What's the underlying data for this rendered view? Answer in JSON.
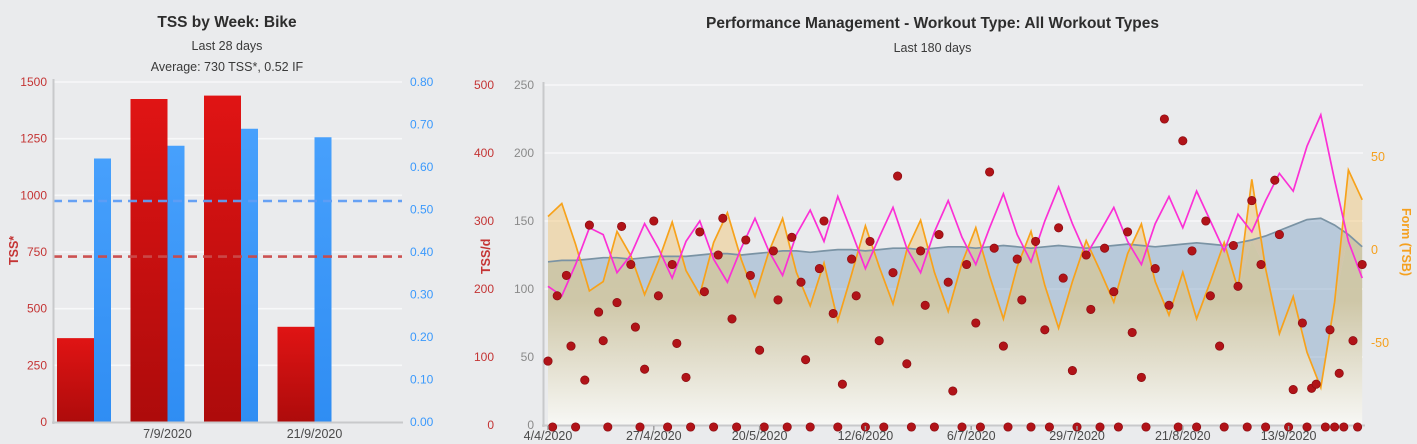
{
  "page": {
    "background": "#eaebed"
  },
  "chart_data": [
    {
      "id": "tss-by-week",
      "type": "bar",
      "title": "TSS by Week: Bike",
      "subtitle": "Last 28 days",
      "note": "Average: 730 TSS*, 0.52 IF",
      "categories": [
        "",
        "7/9/2020",
        "",
        "21/9/2020"
      ],
      "series": [
        {
          "name": "weekly-tss-red-bars",
          "axis": "left",
          "color_top": "#e01414",
          "color_bottom": "#ad0b0b",
          "values": [
            370,
            1425,
            1440,
            420
          ]
        },
        {
          "name": "weekly-if-blue-bars",
          "axis": "right",
          "color_top": "#47a0fc",
          "color_bottom": "#2f8df3",
          "values": [
            0.62,
            0.65,
            0.69,
            0.67
          ]
        }
      ],
      "average_lines": [
        {
          "name": "avg-tss-dashed",
          "axis": "left",
          "value": 730,
          "color": "#cb4a4a"
        },
        {
          "name": "avg-if-dashed",
          "axis": "right",
          "value": 0.52,
          "color": "#5f9ef5"
        }
      ],
      "y_left": {
        "title": "TSS*",
        "min": 0,
        "max": 1500,
        "tick_step": 250,
        "color": "#c43434"
      },
      "y_right": {
        "min": 0,
        "max": 0.8,
        "tick_step": 0.1,
        "decimals": 2,
        "color": "#3b99fc"
      },
      "x_label_color": "#4a4a4a",
      "grid": true
    },
    {
      "id": "performance-management",
      "type": "area",
      "title": "Performance Management - Workout Type: All Workout Types",
      "subtitle": "Last 180 days",
      "x_tick_labels": [
        "4/4/2020",
        "27/4/2020",
        "20/5/2020",
        "12/6/2020",
        "6/7/2020",
        "29/7/2020",
        "21/8/2020",
        "13/9/2020"
      ],
      "x_tick_days": [
        0,
        23,
        46,
        69,
        92,
        115,
        138,
        161
      ],
      "sample_step_days": 3,
      "y_axis_tssd": {
        "title": "TSS/d",
        "min": 0,
        "max": 500,
        "tick_step": 100,
        "color": "#c43434"
      },
      "y_axis_inner": {
        "min": 0,
        "max": 250,
        "tick_step": 50,
        "color": "#8a8a8a"
      },
      "y_axis_form": {
        "title": "Form (TSB)",
        "ticks": [
          50,
          0,
          -50
        ],
        "color": "#f5a01e"
      },
      "x_label_color": "#4a4a4a",
      "grid": true,
      "area_gradient": {
        "top": "#cdc5a4",
        "bottom": "#f8f8f5"
      },
      "series": [
        {
          "name": "blue-gray-area",
          "style": "area-line",
          "axis": "inner",
          "line_color": "#7a93a4",
          "fill_color": "rgba(125,160,195,0.45)",
          "values": [
            120,
            121,
            121,
            122,
            123,
            123,
            122,
            123,
            124,
            124,
            124,
            125,
            126,
            126,
            125,
            126,
            127,
            128,
            128,
            127,
            128,
            129,
            129,
            128,
            129,
            130,
            130,
            129,
            130,
            131,
            131,
            130,
            131,
            132,
            131,
            130,
            131,
            132,
            131,
            130,
            131,
            132,
            133,
            132,
            131,
            132,
            133,
            134,
            133,
            132,
            134,
            136,
            139,
            143,
            147,
            151,
            152,
            147,
            140,
            131
          ]
        },
        {
          "name": "orange-line",
          "style": "line",
          "axis": "form",
          "line_color": "#f7a21b",
          "fill_color": "rgba(242,196,110,0.45)",
          "values": [
            18,
            25,
            3,
            -22,
            -17,
            10,
            -3,
            -24,
            -6,
            15,
            -11,
            -24,
            4,
            20,
            -5,
            -25,
            -1,
            17,
            -12,
            -30,
            -7,
            -38,
            -13,
            13,
            -9,
            -29,
            0,
            16,
            -12,
            -33,
            -7,
            12,
            -14,
            -37,
            -9,
            10,
            -19,
            -42,
            -17,
            5,
            -11,
            -28,
            -2,
            14,
            -17,
            -35,
            -12,
            -37,
            -17,
            4,
            -21,
            38,
            -10,
            -45,
            -25,
            -55,
            -74,
            -28,
            43,
            27
          ]
        },
        {
          "name": "magenta-line",
          "style": "line",
          "axis": "inner",
          "line_color": "#fb30d5",
          "values": [
            102,
            95,
            118,
            145,
            140,
            112,
            125,
            148,
            130,
            108,
            135,
            150,
            122,
            105,
            130,
            152,
            128,
            110,
            140,
            158,
            135,
            168,
            142,
            115,
            138,
            160,
            130,
            112,
            142,
            165,
            138,
            118,
            145,
            170,
            140,
            120,
            150,
            175,
            148,
            125,
            142,
            160,
            135,
            118,
            148,
            168,
            145,
            172,
            150,
            128,
            155,
            142,
            165,
            185,
            172,
            205,
            228,
            180,
            135,
            108
          ]
        }
      ],
      "scatter": {
        "name": "red-dots",
        "axis": "inner",
        "color": "#b11318",
        "edge_color": "#8c0d12",
        "points": [
          [
            0,
            47
          ],
          [
            1,
            0
          ],
          [
            2,
            95
          ],
          [
            4,
            110
          ],
          [
            5,
            58
          ],
          [
            6,
            0
          ],
          [
            8,
            33
          ],
          [
            9,
            147
          ],
          [
            11,
            83
          ],
          [
            12,
            62
          ],
          [
            13,
            0
          ],
          [
            15,
            90
          ],
          [
            16,
            146
          ],
          [
            18,
            118
          ],
          [
            19,
            72
          ],
          [
            20,
            0
          ],
          [
            21,
            41
          ],
          [
            23,
            150
          ],
          [
            24,
            95
          ],
          [
            26,
            0
          ],
          [
            27,
            118
          ],
          [
            28,
            60
          ],
          [
            30,
            35
          ],
          [
            31,
            0
          ],
          [
            33,
            142
          ],
          [
            34,
            98
          ],
          [
            36,
            0
          ],
          [
            37,
            125
          ],
          [
            38,
            152
          ],
          [
            40,
            78
          ],
          [
            41,
            0
          ],
          [
            43,
            136
          ],
          [
            44,
            110
          ],
          [
            46,
            55
          ],
          [
            47,
            0
          ],
          [
            49,
            128
          ],
          [
            50,
            92
          ],
          [
            52,
            0
          ],
          [
            53,
            138
          ],
          [
            55,
            105
          ],
          [
            56,
            48
          ],
          [
            57,
            0
          ],
          [
            59,
            115
          ],
          [
            60,
            150
          ],
          [
            62,
            82
          ],
          [
            63,
            0
          ],
          [
            64,
            30
          ],
          [
            66,
            122
          ],
          [
            67,
            95
          ],
          [
            69,
            0
          ],
          [
            70,
            135
          ],
          [
            72,
            62
          ],
          [
            73,
            0
          ],
          [
            75,
            112
          ],
          [
            76,
            183
          ],
          [
            78,
            45
          ],
          [
            79,
            0
          ],
          [
            81,
            128
          ],
          [
            82,
            88
          ],
          [
            84,
            0
          ],
          [
            85,
            140
          ],
          [
            87,
            105
          ],
          [
            88,
            25
          ],
          [
            90,
            0
          ],
          [
            91,
            118
          ],
          [
            93,
            75
          ],
          [
            94,
            0
          ],
          [
            96,
            186
          ],
          [
            97,
            130
          ],
          [
            99,
            58
          ],
          [
            100,
            0
          ],
          [
            102,
            122
          ],
          [
            103,
            92
          ],
          [
            105,
            0
          ],
          [
            106,
            135
          ],
          [
            108,
            70
          ],
          [
            109,
            0
          ],
          [
            111,
            145
          ],
          [
            112,
            108
          ],
          [
            114,
            40
          ],
          [
            115,
            0
          ],
          [
            117,
            125
          ],
          [
            118,
            85
          ],
          [
            120,
            0
          ],
          [
            121,
            130
          ],
          [
            123,
            98
          ],
          [
            124,
            0
          ],
          [
            126,
            142
          ],
          [
            127,
            68
          ],
          [
            129,
            35
          ],
          [
            130,
            0
          ],
          [
            132,
            115
          ],
          [
            134,
            225
          ],
          [
            135,
            88
          ],
          [
            137,
            0
          ],
          [
            138,
            209
          ],
          [
            140,
            128
          ],
          [
            141,
            0
          ],
          [
            143,
            150
          ],
          [
            144,
            95
          ],
          [
            146,
            58
          ],
          [
            147,
            0
          ],
          [
            149,
            132
          ],
          [
            150,
            102
          ],
          [
            152,
            0
          ],
          [
            153,
            165
          ],
          [
            155,
            118
          ],
          [
            156,
            0
          ],
          [
            158,
            180
          ],
          [
            159,
            140
          ],
          [
            161,
            0
          ],
          [
            162,
            26
          ],
          [
            164,
            75
          ],
          [
            165,
            0
          ],
          [
            166,
            27
          ],
          [
            167,
            30
          ],
          [
            169,
            0
          ],
          [
            170,
            70
          ],
          [
            171,
            0
          ],
          [
            172,
            38
          ],
          [
            173,
            0
          ],
          [
            175,
            62
          ],
          [
            176,
            0
          ],
          [
            177,
            118
          ]
        ]
      }
    }
  ]
}
